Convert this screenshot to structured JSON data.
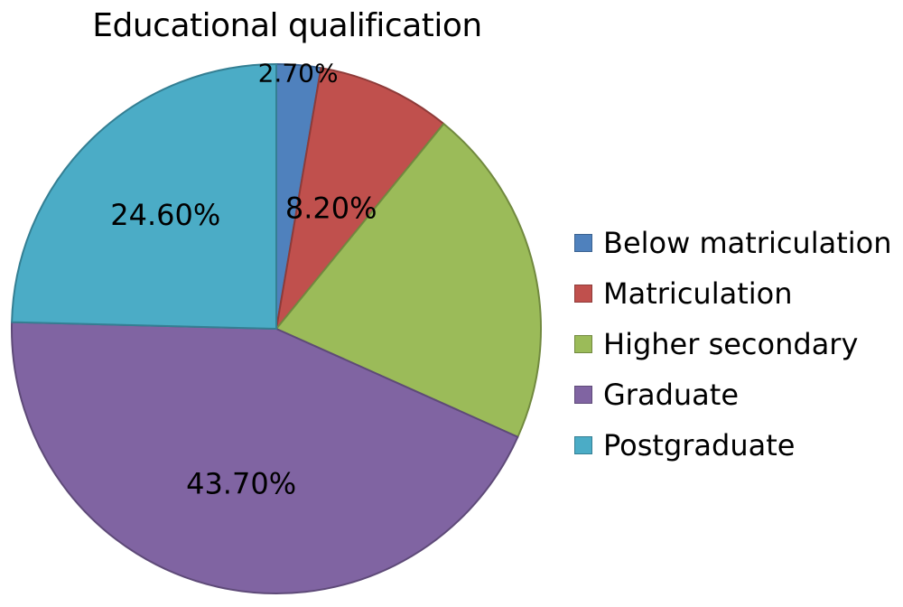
{
  "chart_data": {
    "type": "pie",
    "title": "Educational qualification",
    "slices": [
      {
        "label": "Below matriculation",
        "value": 2.7,
        "value_label": "2.70%",
        "color": "#4f81bd",
        "border": "#3b6290"
      },
      {
        "label": "Matriculation",
        "value": 8.2,
        "value_label": "8.20%",
        "color": "#c0504d",
        "border": "#8e3b39"
      },
      {
        "label": "Higher secondary",
        "value": 20.8,
        "value_label": "",
        "color": "#9bbb59",
        "border": "#71893f"
      },
      {
        "label": "Graduate",
        "value": 43.7,
        "value_label": "43.70%",
        "color": "#8064a2",
        "border": "#5e4a78"
      },
      {
        "label": "Postgraduate",
        "value": 24.6,
        "value_label": "24.60%",
        "color": "#4bacc6",
        "border": "#347f93"
      }
    ],
    "start_angle": "12 o'clock",
    "direction": "clockwise",
    "legend_position": "right"
  }
}
